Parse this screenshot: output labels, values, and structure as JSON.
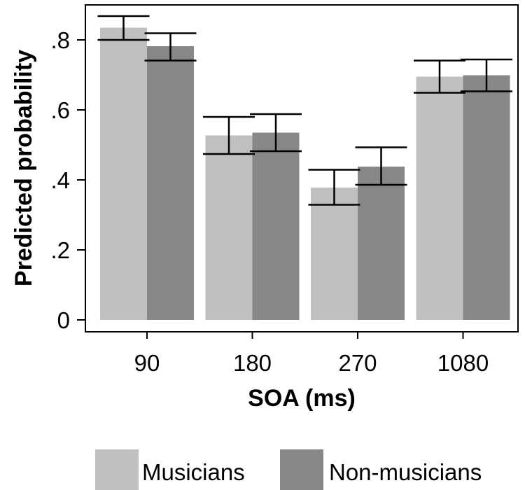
{
  "chart_data": {
    "type": "bar",
    "title": "",
    "xlabel": "SOA (ms)",
    "ylabel": "Predicted probability",
    "categories": [
      "90",
      "180",
      "270",
      "1080"
    ],
    "ylim": [
      0,
      0.89
    ],
    "yticks": [
      {
        "value": 0,
        "label": "0"
      },
      {
        "value": 0.2,
        "label": ".2"
      },
      {
        "value": 0.4,
        "label": ".4"
      },
      {
        "value": 0.6,
        "label": ".6"
      },
      {
        "value": 0.8,
        "label": ".8"
      }
    ],
    "series": [
      {
        "name": "Musicians",
        "color": "#c0c0c0",
        "values": [
          0.835,
          0.527,
          0.378,
          0.695
        ],
        "ci_low": [
          0.8,
          0.474,
          0.329,
          0.649
        ],
        "ci_high": [
          0.868,
          0.58,
          0.429,
          0.741
        ]
      },
      {
        "name": "Non-musicians",
        "color": "#878787",
        "values": [
          0.782,
          0.535,
          0.438,
          0.699
        ],
        "ci_low": [
          0.741,
          0.482,
          0.386,
          0.653
        ],
        "ci_high": [
          0.819,
          0.588,
          0.493,
          0.744
        ]
      }
    ],
    "error_bars": true,
    "grid": false,
    "legend": "bottom"
  }
}
